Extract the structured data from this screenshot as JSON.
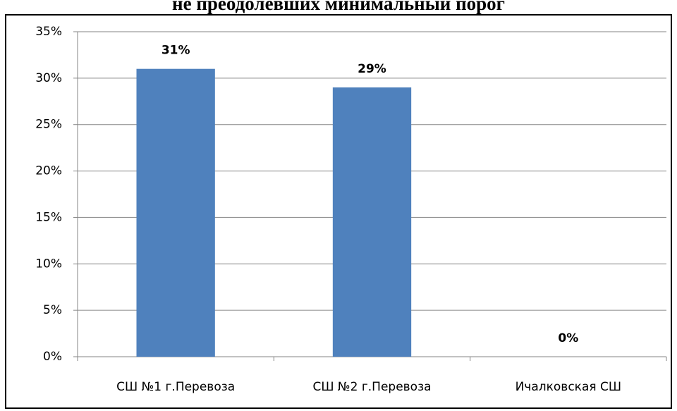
{
  "chart_data": {
    "type": "bar",
    "title": "не преодолевших минимальный порог",
    "categories": [
      "СШ №1 г.Перевоза",
      "СШ №2 г.Перевоза",
      "Ичалковская СШ"
    ],
    "values": [
      31,
      29,
      0
    ],
    "value_labels": [
      "31%",
      "29%",
      "0%"
    ],
    "color": "#4f81bd",
    "ylim": [
      0,
      35
    ],
    "yticks": [
      {
        "value": 0,
        "label": "0%"
      },
      {
        "value": 5,
        "label": "5%"
      },
      {
        "value": 10,
        "label": "10%"
      },
      {
        "value": 15,
        "label": "15%"
      },
      {
        "value": 20,
        "label": "20%"
      },
      {
        "value": 25,
        "label": "25%"
      },
      {
        "value": 30,
        "label": "30%"
      },
      {
        "value": 35,
        "label": "35%"
      }
    ],
    "grid": true
  }
}
